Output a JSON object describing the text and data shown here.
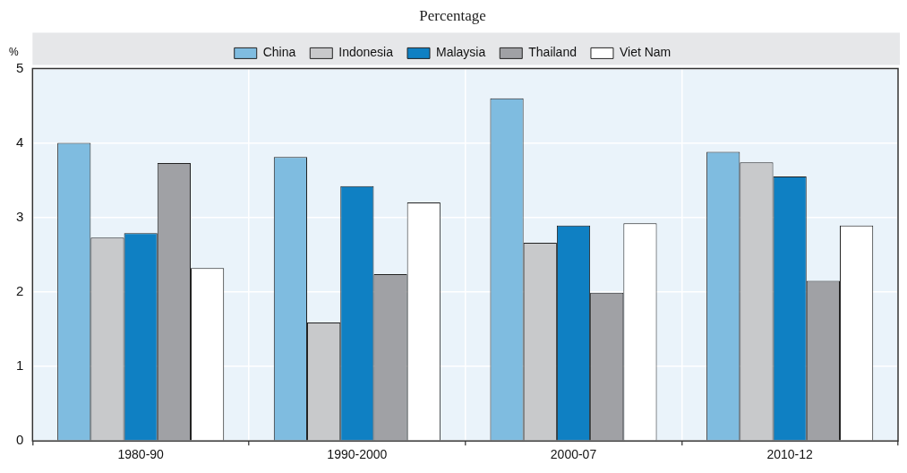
{
  "chart_data": {
    "type": "bar",
    "subtitle": "Percentage",
    "ylabel": "%",
    "categories": [
      "1980-90",
      "1990-2000",
      "2000-07",
      "2010-12"
    ],
    "series": [
      {
        "name": "China",
        "color": "#7fbce0",
        "values": [
          4.0,
          3.81,
          4.6,
          3.88
        ]
      },
      {
        "name": "Indonesia",
        "color": "#c8c9cb",
        "values": [
          2.73,
          1.59,
          2.66,
          3.74
        ]
      },
      {
        "name": "Malaysia",
        "color": "#0f80c3",
        "values": [
          2.79,
          3.42,
          2.89,
          3.55
        ]
      },
      {
        "name": "Thailand",
        "color": "#a0a1a5",
        "values": [
          3.73,
          2.24,
          1.99,
          2.15
        ]
      },
      {
        "name": "Viet Nam",
        "color": "#ffffff",
        "values": [
          2.32,
          3.2,
          2.92,
          2.89
        ]
      }
    ],
    "ylim": [
      0,
      5
    ],
    "yticks": [
      0,
      1,
      2,
      3,
      4,
      5
    ],
    "grid": true,
    "legend": "top"
  }
}
